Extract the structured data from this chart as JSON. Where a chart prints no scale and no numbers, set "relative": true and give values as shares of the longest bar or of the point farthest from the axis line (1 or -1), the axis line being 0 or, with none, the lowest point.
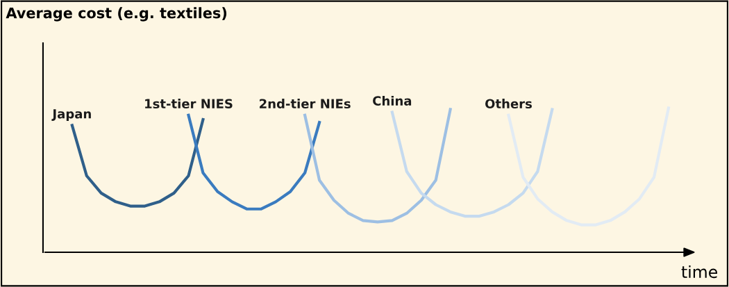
{
  "chart_data": {
    "type": "line",
    "relative": true,
    "annotations": [
      "Average cost (e.g. textiles)"
    ],
    "xlabel": "time",
    "legend": false,
    "marker": "none",
    "line_style": "solid",
    "categories": [
      null,
      null,
      null,
      null,
      null,
      null,
      null,
      null,
      null,
      null,
      null,
      null,
      null,
      null,
      null,
      null,
      null,
      null,
      null,
      null,
      null,
      null,
      null,
      null,
      null,
      null,
      null,
      null,
      null,
      null,
      null,
      null,
      null,
      null,
      null,
      null,
      null,
      null,
      null,
      null,
      null,
      null,
      null,
      null,
      null,
      null
    ],
    "series": [
      {
        "name": "Japan",
        "color": "#2f5f8a",
        "values": [
          null,
          null,
          0.88,
          0.53,
          0.41,
          0.35,
          0.32,
          0.32,
          0.35,
          0.41,
          0.53,
          0.92,
          null,
          null,
          null,
          null,
          null,
          null,
          null,
          null,
          null,
          null,
          null,
          null,
          null,
          null,
          null,
          null,
          null,
          null,
          null,
          null,
          null,
          null,
          null,
          null,
          null,
          null,
          null,
          null,
          null,
          null,
          null,
          null,
          null,
          null
        ]
      },
      {
        "name": "1st-tier NIES",
        "color": "#3a7bbf",
        "values": [
          null,
          null,
          null,
          null,
          null,
          null,
          null,
          null,
          null,
          null,
          0.95,
          0.55,
          0.42,
          0.35,
          0.3,
          0.3,
          0.35,
          0.42,
          0.55,
          0.9,
          null,
          null,
          null,
          null,
          null,
          null,
          null,
          null,
          null,
          null,
          null,
          null,
          null,
          null,
          null,
          null,
          null,
          null,
          null,
          null,
          null,
          null,
          null,
          null,
          null,
          null
        ]
      },
      {
        "name": "2nd-tier NIEs",
        "color": "#9dbfe3",
        "values": [
          null,
          null,
          null,
          null,
          null,
          null,
          null,
          null,
          null,
          null,
          null,
          null,
          null,
          null,
          null,
          null,
          null,
          null,
          0.95,
          0.5,
          0.36,
          0.27,
          0.22,
          0.21,
          0.22,
          0.27,
          0.36,
          0.5,
          0.99,
          null,
          null,
          null,
          null,
          null,
          null,
          null,
          null,
          null,
          null,
          null,
          null,
          null,
          null,
          null,
          null,
          null
        ]
      },
      {
        "name": "China",
        "color": "#c5daef",
        "values": [
          null,
          null,
          null,
          null,
          null,
          null,
          null,
          null,
          null,
          null,
          null,
          null,
          null,
          null,
          null,
          null,
          null,
          null,
          null,
          null,
          null,
          null,
          null,
          null,
          0.97,
          0.56,
          0.41,
          0.33,
          0.28,
          0.25,
          0.25,
          0.28,
          0.33,
          0.41,
          0.56,
          0.99,
          null,
          null,
          null,
          null,
          null,
          null,
          null,
          null,
          null,
          null
        ]
      },
      {
        "name": "Others",
        "color": "#e2ebf4",
        "values": [
          null,
          null,
          null,
          null,
          null,
          null,
          null,
          null,
          null,
          null,
          null,
          null,
          null,
          null,
          null,
          null,
          null,
          null,
          null,
          null,
          null,
          null,
          null,
          null,
          null,
          null,
          null,
          null,
          null,
          null,
          null,
          null,
          0.95,
          0.52,
          0.37,
          0.28,
          0.22,
          0.19,
          0.19,
          0.22,
          0.28,
          0.37,
          0.52,
          1.0,
          null,
          null
        ]
      }
    ]
  }
}
